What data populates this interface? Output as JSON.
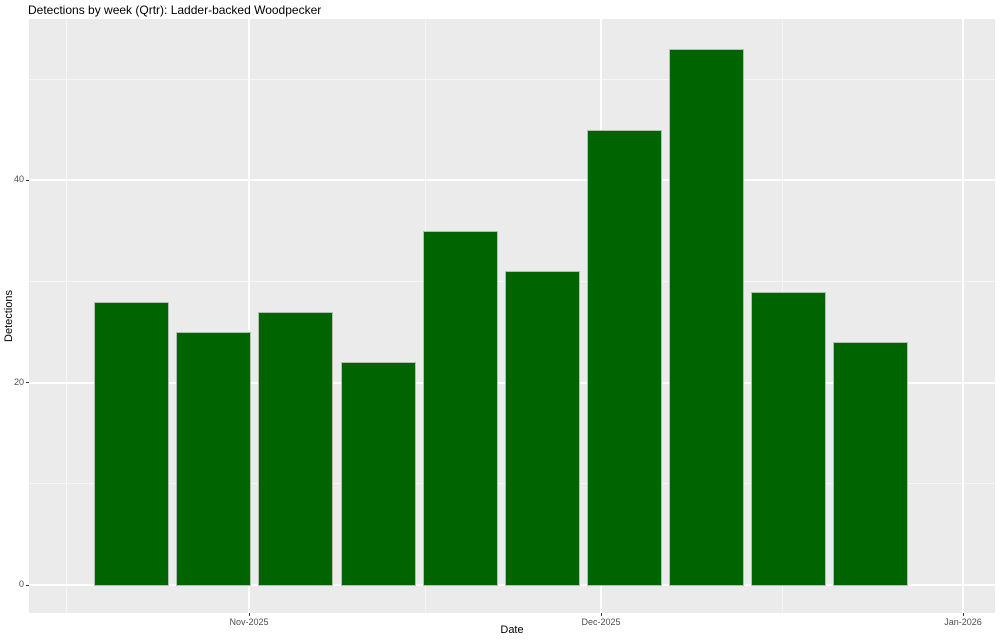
{
  "title": "Detections by week (Qrtr): Ladder-backed Woodpecker",
  "chart_data": {
    "type": "bar",
    "title": "Detections by week (Qrtr): Ladder-backed Woodpecker",
    "xlabel": "Date",
    "ylabel": "Detections",
    "x": [
      "2025-10-22",
      "2025-10-29",
      "2025-11-05",
      "2025-11-12",
      "2025-11-19",
      "2025-11-26",
      "2025-12-03",
      "2025-12-10",
      "2025-12-17",
      "2025-12-24"
    ],
    "values": [
      28,
      25,
      27,
      22,
      35,
      31,
      45,
      53,
      29,
      24
    ],
    "bar_width_days": 7,
    "x_ticks": [
      "Nov-2025",
      "Dec-2025",
      "Jan-2026"
    ],
    "y_ticks": [
      0,
      20,
      40
    ],
    "y_minor_gridlines": [
      10,
      30,
      50
    ],
    "ylim": [
      -2.65,
      55.65
    ],
    "grid": true,
    "legend": false,
    "bar_color": "#006400",
    "bar_border_color": "#b2c0b2",
    "panel_background": "#ebebeb",
    "gridline_color": "#ffffff",
    "tick_label_color": "#4d4d4d"
  }
}
